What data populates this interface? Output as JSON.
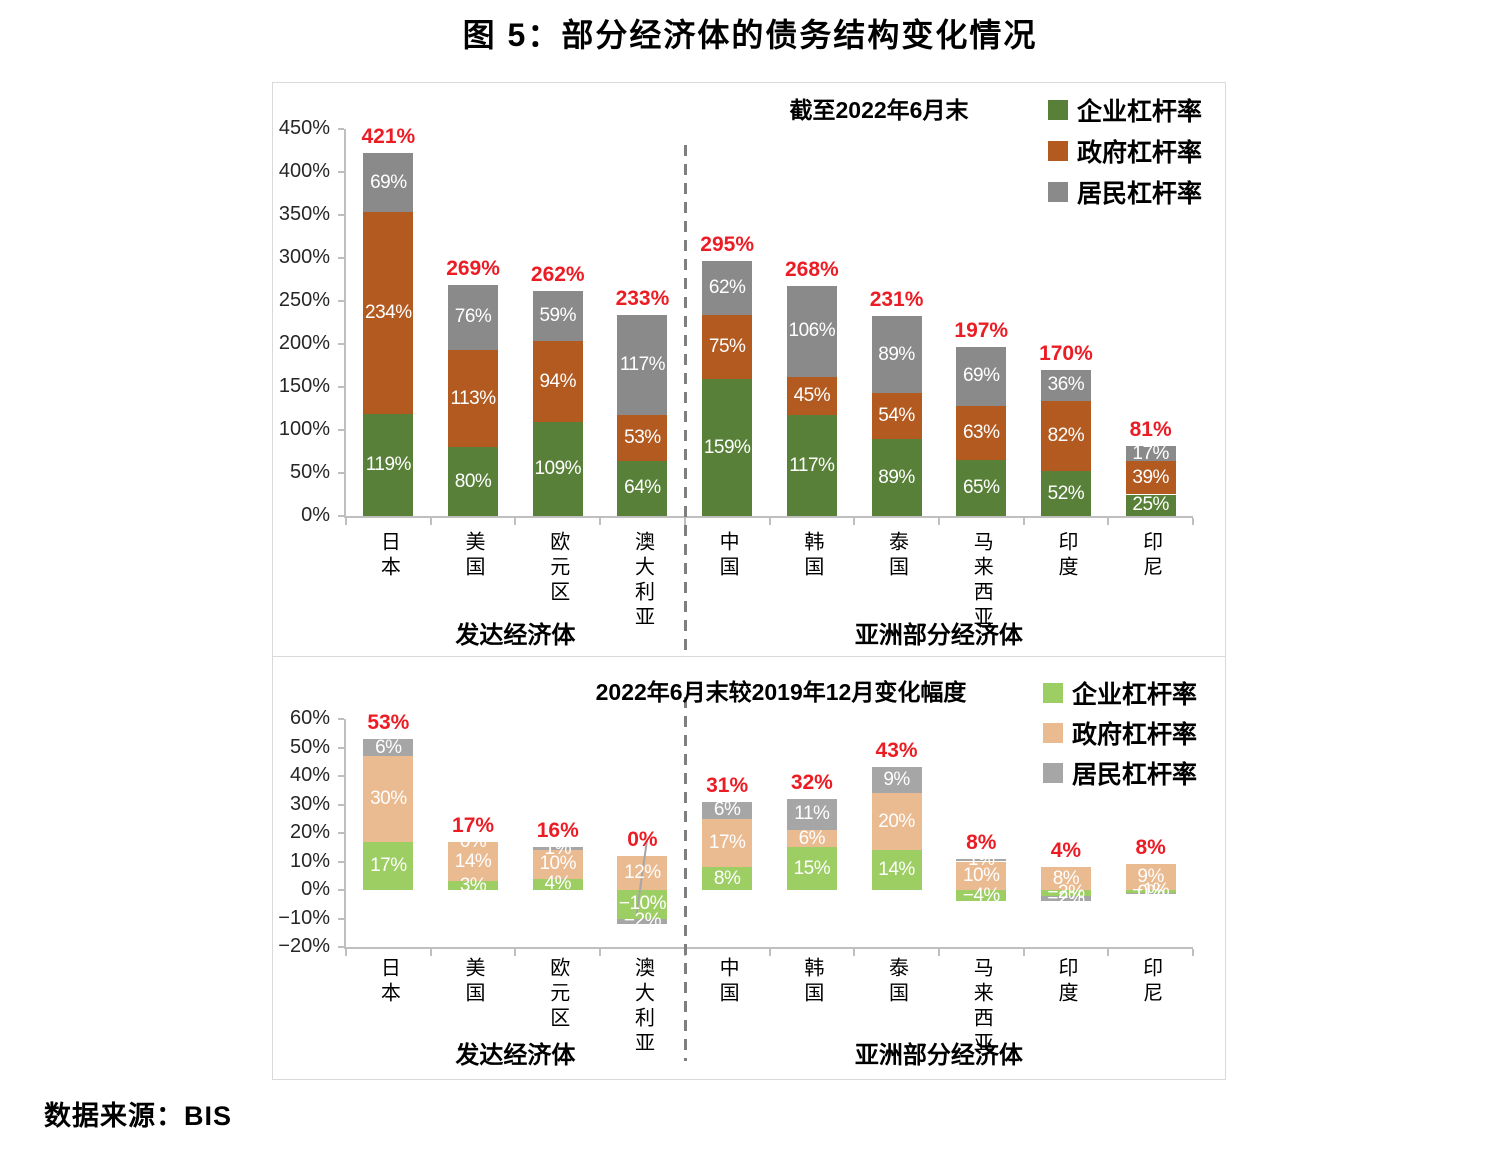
{
  "figure": {
    "title": "图 5：部分经济体的债务结构变化情况",
    "source": "数据来源：BIS"
  },
  "accent_red": "#ec1c24",
  "chart_data": [
    {
      "type": "bar",
      "subtype": "stacked",
      "title": "截至2022年6月末",
      "ylim": [
        0,
        450
      ],
      "ytick_step": 50,
      "ytick_suffix": "%",
      "grid": false,
      "legend_position": "top-right",
      "categories": [
        "日本",
        "美国",
        "欧元区",
        "澳大利亚",
        "中国",
        "韩国",
        "泰国",
        "马来西亚",
        "印度",
        "印尼"
      ],
      "groups": [
        {
          "label": "发达经济体",
          "from": 0,
          "to": 3
        },
        {
          "label": "亚洲部分经济体",
          "from": 4,
          "to": 9
        }
      ],
      "divider_after": 3,
      "series": [
        {
          "name": "企业杠杆率",
          "color": "#588038",
          "values": [
            119,
            80,
            109,
            64,
            159,
            117,
            89,
            65,
            52,
            25
          ],
          "labels": [
            "119%",
            "80%",
            "109%",
            "64%",
            "159%",
            "117%",
            "89%",
            "65%",
            "52%",
            "25%"
          ]
        },
        {
          "name": "政府杠杆率",
          "color": "#b35a20",
          "values": [
            234,
            113,
            94,
            53,
            75,
            45,
            54,
            63,
            82,
            39
          ],
          "labels": [
            "234%",
            "113%",
            "94%",
            "53%",
            "75%",
            "45%",
            "54%",
            "63%",
            "82%",
            "39%"
          ]
        },
        {
          "name": "居民杠杆率",
          "color": "#8a8a8a",
          "values": [
            69,
            76,
            59,
            117,
            62,
            106,
            89,
            69,
            36,
            17
          ],
          "labels": [
            "69%",
            "76%",
            "59%",
            "117%",
            "62%",
            "106%",
            "89%",
            "69%",
            "36%",
            "17%"
          ]
        }
      ],
      "totals": [
        "421%",
        "269%",
        "262%",
        "233%",
        "295%",
        "268%",
        "231%",
        "197%",
        "170%",
        "81%"
      ],
      "total_color": "#ec1c24"
    },
    {
      "type": "bar",
      "subtype": "stacked",
      "title": "2022年6月末较2019年12月变化幅度",
      "ylim": [
        -20,
        60
      ],
      "ytick_step": 10,
      "ytick_suffix": "%",
      "grid": false,
      "legend_position": "top-right",
      "categories": [
        "日本",
        "美国",
        "欧元区",
        "澳大利亚",
        "中国",
        "韩国",
        "泰国",
        "马来西亚",
        "印度",
        "印尼"
      ],
      "groups": [
        {
          "label": "发达经济体",
          "from": 0,
          "to": 3
        },
        {
          "label": "亚洲部分经济体",
          "from": 4,
          "to": 9
        }
      ],
      "divider_after": 3,
      "leader_line_category": 3,
      "series": [
        {
          "name": "企业杠杆率",
          "color": "#9dce64",
          "values": [
            17,
            3,
            4,
            -10,
            8,
            15,
            14,
            -4,
            -2,
            -1
          ],
          "labels": [
            "17%",
            "3%",
            "4%",
            "−10%",
            "8%",
            "15%",
            "14%",
            "−4%",
            "−2%",
            "−1%"
          ]
        },
        {
          "name": "政府杠杆率",
          "color": "#eaba90",
          "values": [
            30,
            14,
            10,
            12,
            17,
            6,
            20,
            10,
            8,
            9
          ],
          "labels": [
            "30%",
            "14%",
            "10%",
            "12%",
            "17%",
            "6%",
            "20%",
            "10%",
            "8%",
            "9%"
          ]
        },
        {
          "name": "居民杠杆率",
          "color": "#a6a6a6",
          "values": [
            6,
            0,
            1,
            -2,
            6,
            11,
            9,
            1,
            -2,
            -0.2
          ],
          "labels": [
            "6%",
            "0%",
            "1%",
            "−2%",
            "6%",
            "11%",
            "9%",
            "1%",
            "−2%",
            "0%"
          ]
        }
      ],
      "totals": [
        "53%",
        "17%",
        "16%",
        "0%",
        "31%",
        "32%",
        "43%",
        "8%",
        "4%",
        "8%"
      ],
      "total_color": "#ec1c24"
    }
  ]
}
